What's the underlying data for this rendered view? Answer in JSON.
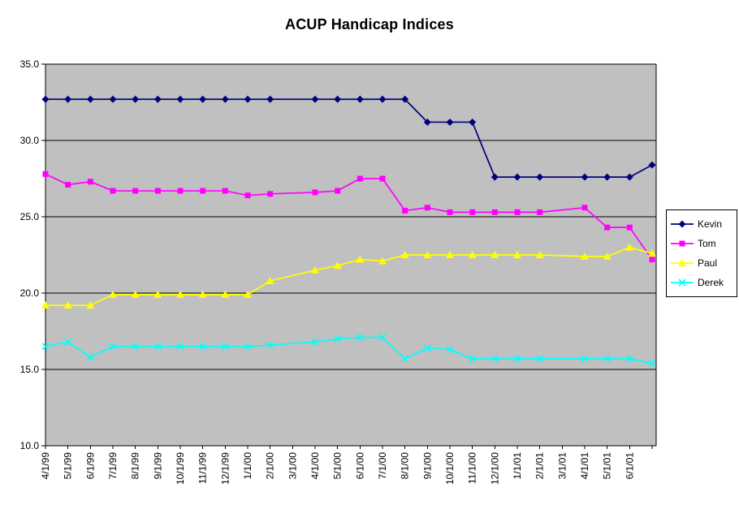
{
  "title": "ACUP Handicap Indices",
  "chart_data": {
    "type": "line",
    "title": "ACUP Handicap Indices",
    "categories": [
      "4/1/99",
      "5/1/99",
      "6/1/99",
      "7/1/99",
      "8/1/99",
      "9/1/99",
      "10/1/99",
      "11/1/99",
      "12/1/99",
      "1/1/00",
      "2/1/00",
      "3/1/00",
      "4/1/00",
      "5/1/00",
      "6/1/00",
      "7/1/00",
      "8/1/00",
      "9/1/00",
      "10/1/00",
      "11/1/00",
      "12/1/00",
      "1/1/01",
      "2/1/01",
      "3/1/01",
      "4/1/01",
      "5/1/01",
      "6/1/01",
      ""
    ],
    "series": [
      {
        "name": "Kevin",
        "color": "#000080",
        "marker": "diamond",
        "values": [
          32.7,
          32.7,
          32.7,
          32.7,
          32.7,
          32.7,
          32.7,
          32.7,
          32.7,
          32.7,
          32.7,
          null,
          32.7,
          32.7,
          32.7,
          32.7,
          32.7,
          31.2,
          31.2,
          31.2,
          27.6,
          27.6,
          27.6,
          null,
          27.6,
          27.6,
          27.6,
          28.4
        ]
      },
      {
        "name": "Tom",
        "color": "#FF00FF",
        "marker": "square",
        "values": [
          27.8,
          27.1,
          27.3,
          26.7,
          26.7,
          26.7,
          26.7,
          26.7,
          26.7,
          26.4,
          26.5,
          null,
          26.6,
          26.7,
          27.5,
          27.5,
          25.4,
          25.6,
          25.3,
          25.3,
          25.3,
          25.3,
          25.3,
          null,
          25.6,
          24.3,
          24.3,
          22.2
        ]
      },
      {
        "name": "Paul",
        "color": "#FFFF00",
        "marker": "triangle",
        "values": [
          19.2,
          19.2,
          19.2,
          19.9,
          19.9,
          19.9,
          19.9,
          19.9,
          19.9,
          19.9,
          20.8,
          null,
          21.5,
          21.8,
          22.2,
          22.1,
          22.5,
          22.5,
          22.5,
          22.5,
          22.5,
          22.5,
          22.5,
          null,
          22.4,
          22.4,
          23.0,
          22.6
        ]
      },
      {
        "name": "Derek",
        "color": "#00FFFF",
        "marker": "x",
        "values": [
          16.5,
          16.8,
          15.8,
          16.5,
          16.5,
          16.5,
          16.5,
          16.5,
          16.5,
          16.5,
          16.6,
          null,
          16.8,
          17.0,
          17.1,
          17.1,
          15.7,
          16.4,
          16.3,
          15.7,
          15.7,
          15.7,
          15.7,
          null,
          15.7,
          15.7,
          15.7,
          15.4
        ]
      }
    ],
    "ylim": [
      10,
      35
    ],
    "ytick_labels": [
      "35.0",
      "30.0",
      "25.0",
      "20.0",
      "15.0",
      "10.0"
    ],
    "yticks": [
      35,
      30,
      25,
      20,
      15,
      10
    ],
    "grid": "horizontal-black",
    "plot_bg": "#C0C0C0",
    "axis_color": "#000000",
    "legend_position": "right",
    "legend_entries": [
      "Kevin",
      "Tom",
      "Paul",
      "Derek"
    ]
  }
}
